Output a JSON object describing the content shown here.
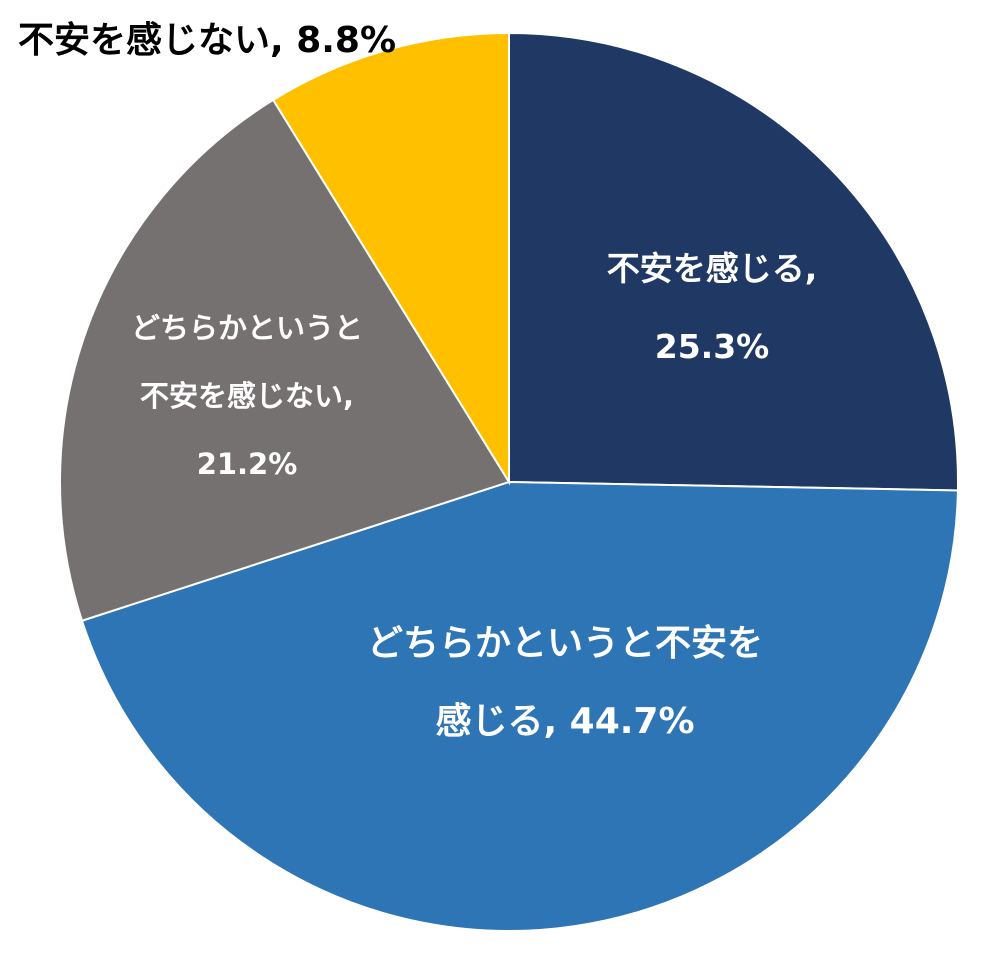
{
  "chart_data": {
    "type": "pie",
    "start_angle": "12 o'clock",
    "direction": "clockwise",
    "slices": [
      {
        "label": "不安を感じる",
        "value": 25.3,
        "color": "#203864",
        "text_lines": [
          "不安を感じる,",
          "25.3%"
        ]
      },
      {
        "label": "どちらかというと不安を感じる",
        "value": 44.7,
        "color": "#2E75B6",
        "text_lines": [
          "どちらかというと不安を",
          "感じる, 44.7%"
        ]
      },
      {
        "label": "どちらかというと不安を感じない",
        "value": 21.2,
        "color": "#767171",
        "text_lines": [
          "どちらかというと",
          "不安を感じない,",
          "21.2%"
        ]
      },
      {
        "label": "不安を感じない",
        "value": 8.8,
        "color": "#FFC000",
        "text_lines": [
          "不安を感じない, 8.8%"
        ]
      }
    ]
  }
}
